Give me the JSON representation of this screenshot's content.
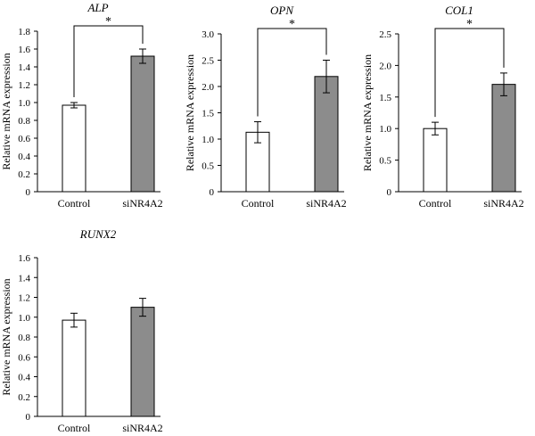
{
  "chart_data": [
    {
      "type": "bar",
      "title": "ALP",
      "ylabel": "Relative mRNA expression",
      "categories": [
        "Control",
        "siNR4A2"
      ],
      "values": [
        0.97,
        1.52
      ],
      "errors": [
        0.03,
        0.08
      ],
      "ylim": [
        0,
        1.8
      ],
      "yticks": [
        "0",
        "0.2",
        "0.4",
        "0.6",
        "0.8",
        "1.0",
        "1.2",
        "1.4",
        "1.6",
        "1.8"
      ],
      "significance": "*",
      "colors": [
        "#ffffff",
        "#8c8c8c"
      ]
    },
    {
      "type": "bar",
      "title": "OPN",
      "ylabel": "Relative mRNA expression",
      "categories": [
        "Control",
        "siNR4A2"
      ],
      "values": [
        1.13,
        2.19
      ],
      "errors": [
        0.2,
        0.31
      ],
      "ylim": [
        0,
        3.0
      ],
      "yticks": [
        "0",
        "0.5",
        "1.0",
        "1.5",
        "2.0",
        "2.5",
        "3.0"
      ],
      "significance": "*",
      "colors": [
        "#ffffff",
        "#8c8c8c"
      ]
    },
    {
      "type": "bar",
      "title": "COL1",
      "ylabel": "Relative mRNA expression",
      "categories": [
        "Control",
        "siNR4A2"
      ],
      "values": [
        1.0,
        1.7
      ],
      "errors": [
        0.1,
        0.18
      ],
      "ylim": [
        0,
        2.5
      ],
      "yticks": [
        "0",
        "0.5",
        "1.0",
        "1.5",
        "2.0",
        "2.5"
      ],
      "significance": "*",
      "colors": [
        "#ffffff",
        "#8c8c8c"
      ]
    },
    {
      "type": "bar",
      "title": "RUNX2",
      "ylabel": "Relative mRNA expression",
      "categories": [
        "Control",
        "siNR4A2"
      ],
      "values": [
        0.97,
        1.1
      ],
      "errors": [
        0.07,
        0.09
      ],
      "ylim": [
        0,
        1.6
      ],
      "yticks": [
        "0",
        "0.2",
        "0.4",
        "0.6",
        "0.8",
        "1.0",
        "1.2",
        "1.4",
        "1.6"
      ],
      "significance": "",
      "colors": [
        "#ffffff",
        "#8c8c8c"
      ]
    }
  ]
}
